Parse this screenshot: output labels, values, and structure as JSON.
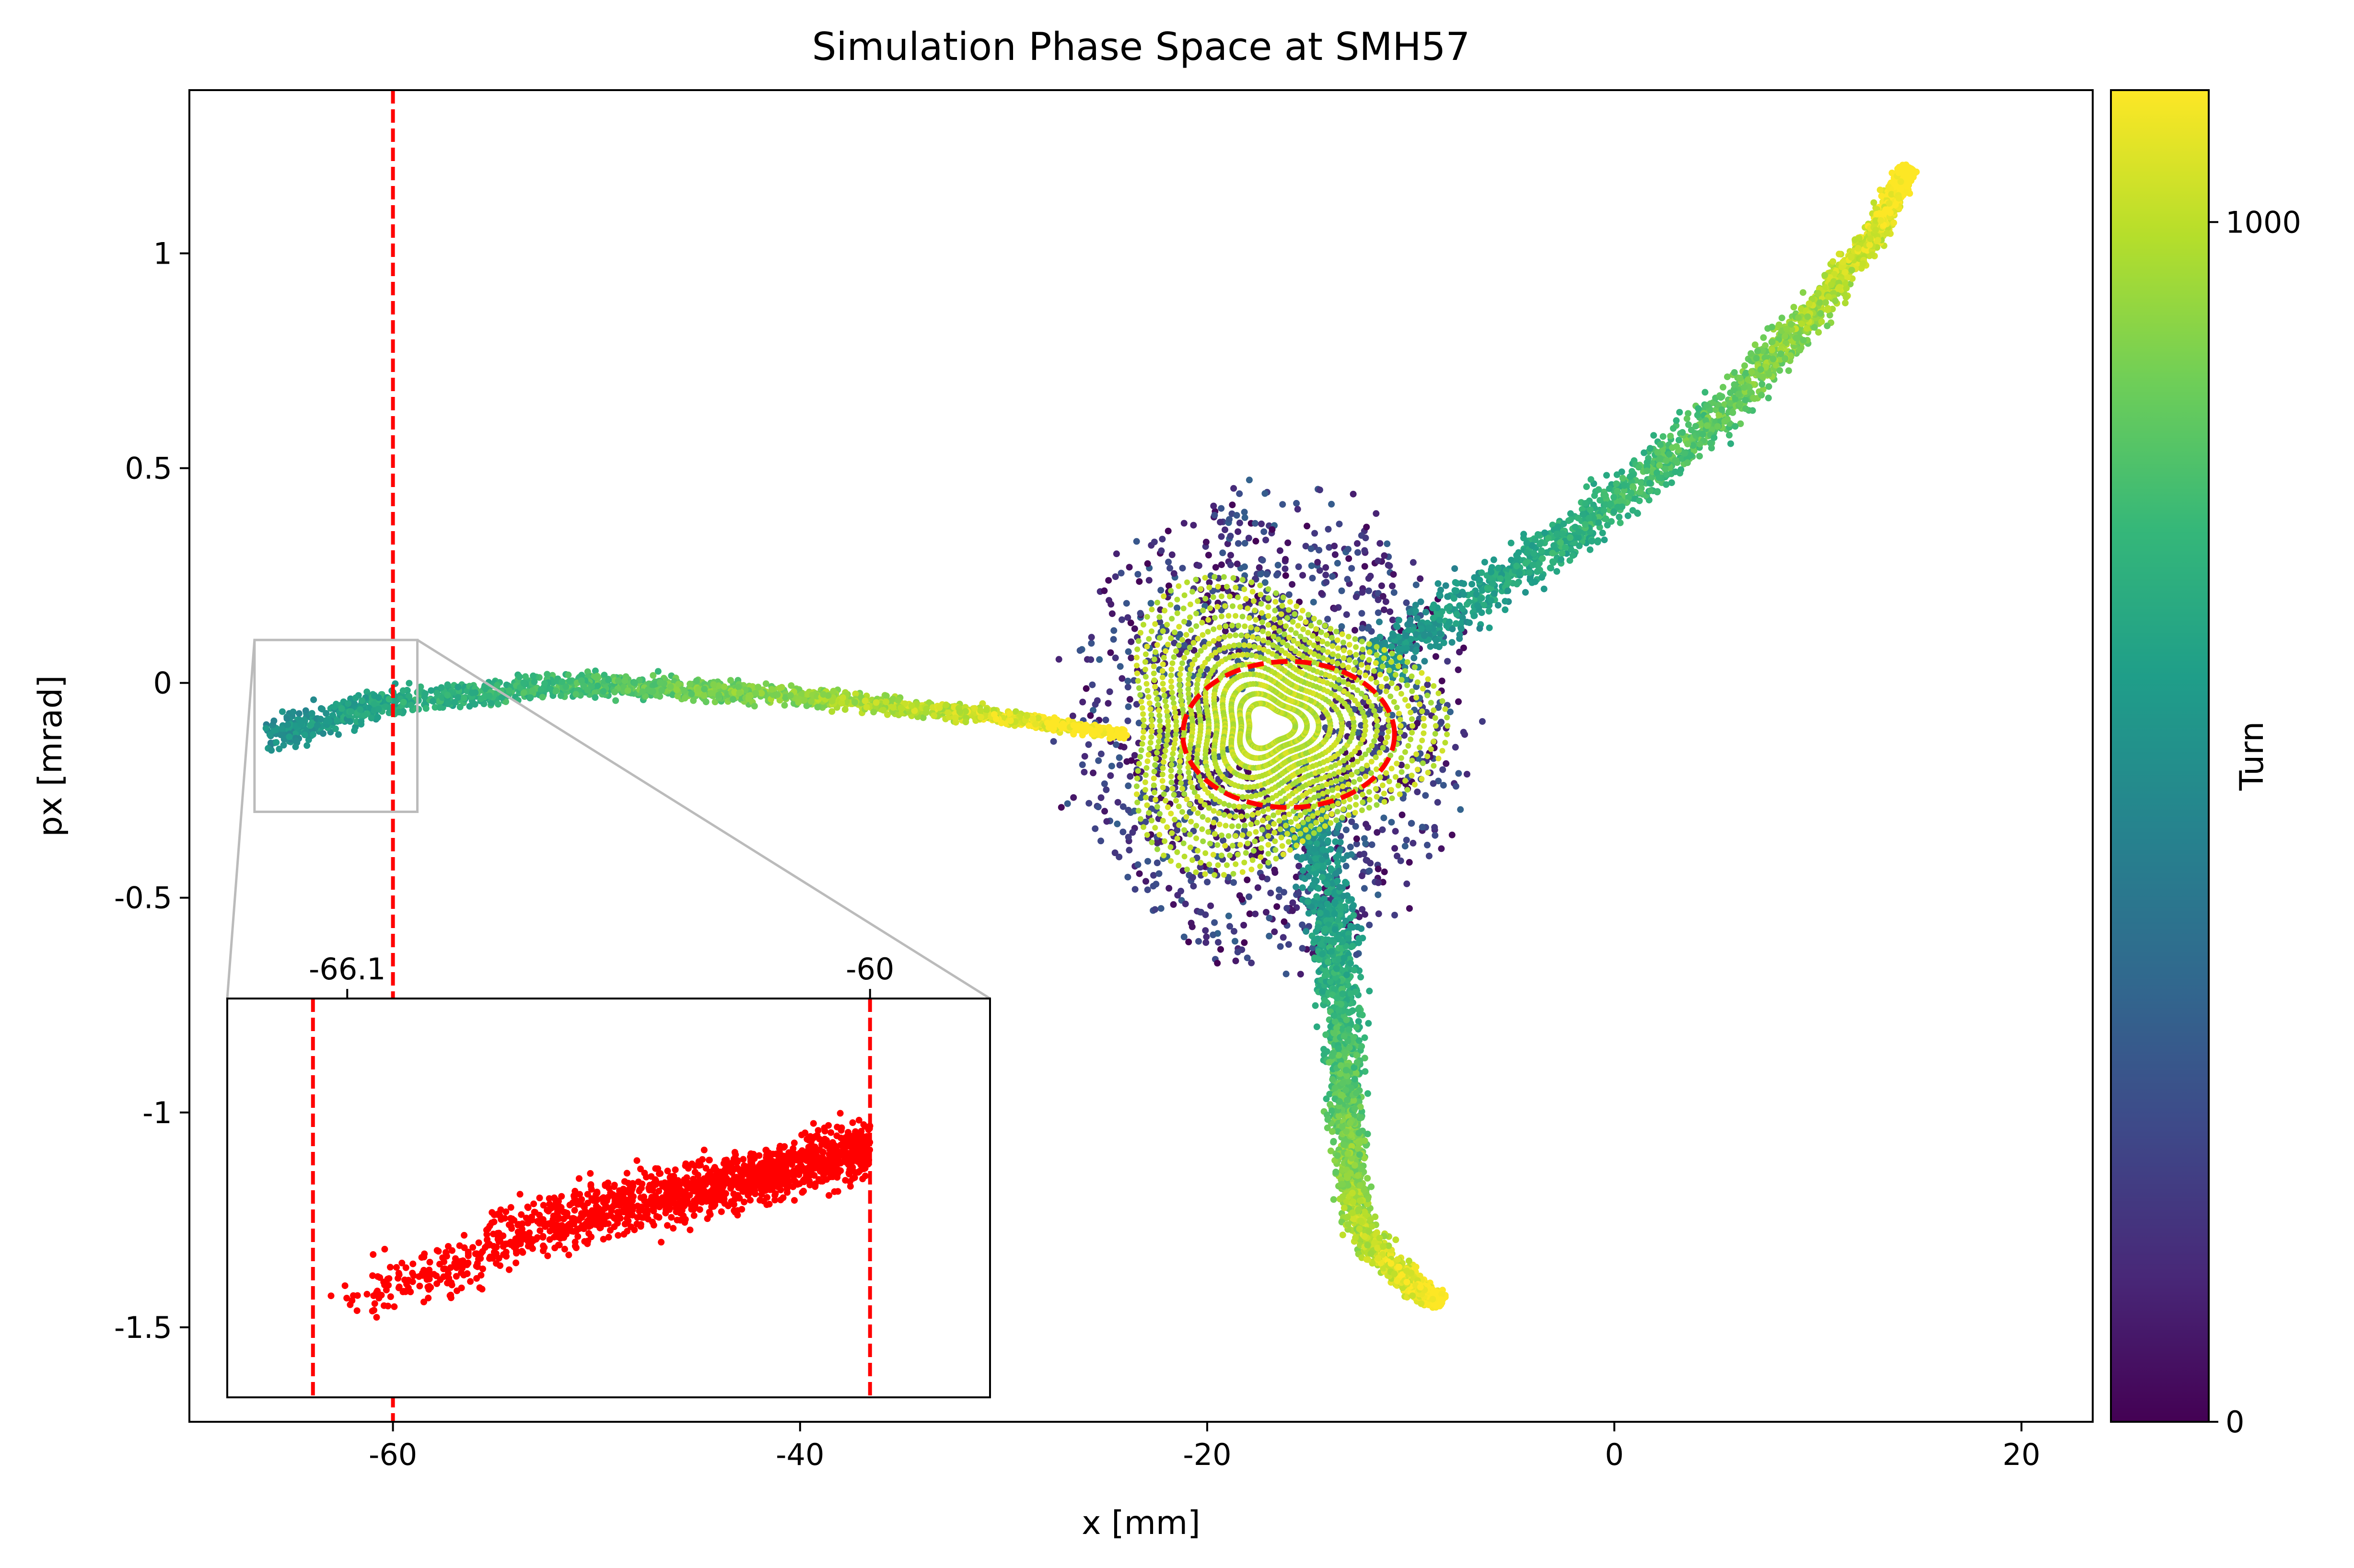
{
  "chart_data": {
    "type": "scatter",
    "title": "Simulation Phase Space at SMH57",
    "xlabel": "x [mm]",
    "ylabel": "px [mrad]",
    "xlim": [
      -70,
      23.5
    ],
    "ylim": [
      -1.72,
      1.38
    ],
    "xticks": [
      -60,
      -40,
      -20,
      0,
      20
    ],
    "yticks": [
      {
        "value": 1,
        "label": "1"
      },
      {
        "value": 0.5,
        "label": "0.5"
      },
      {
        "value": 0,
        "label": "0"
      },
      {
        "value": -0.5,
        "label": "-0.5"
      },
      {
        "value": -1,
        "label": "-1"
      },
      {
        "value": -1.5,
        "label": "-1.5"
      }
    ],
    "grid": false,
    "colormap": {
      "name": "viridis",
      "label": "Turn",
      "range": [
        0,
        1110
      ],
      "ticks": [
        0,
        1000
      ],
      "stops": [
        "#440154",
        "#482878",
        "#3e4989",
        "#31688e",
        "#26828e",
        "#1f9e89",
        "#35b779",
        "#6ece58",
        "#b5de2b",
        "#fde725"
      ]
    },
    "separatrix_arms": [
      {
        "name": "left",
        "center": [
          [
            -66.2,
            -0.13
          ],
          [
            -60,
            -0.04
          ],
          [
            -50,
            0.0
          ],
          [
            -40,
            -0.03
          ],
          [
            -30,
            -0.08
          ],
          [
            -24,
            -0.12
          ]
        ]
      },
      {
        "name": "upper-right",
        "center": [
          [
            -12,
            0.05
          ],
          [
            -6,
            0.22
          ],
          [
            0,
            0.42
          ],
          [
            6,
            0.66
          ],
          [
            10,
            0.88
          ],
          [
            13,
            1.06
          ],
          [
            14.5,
            1.2
          ]
        ]
      },
      {
        "name": "lower",
        "center": [
          [
            -15,
            -0.3
          ],
          [
            -14,
            -0.5
          ],
          [
            -13.5,
            -0.7
          ],
          [
            -13.2,
            -0.9
          ],
          [
            -13,
            -1.1
          ],
          [
            -12.5,
            -1.28
          ],
          [
            -10,
            -1.4
          ],
          [
            -8.5,
            -1.44
          ]
        ]
      }
    ],
    "stable_island": {
      "center": [
        -17,
        -0.1
      ],
      "turn_color": "#d3e21b"
    },
    "annotations": {
      "septum_line": {
        "x": -60,
        "color": "#ff0000",
        "style": "dashed"
      },
      "core_ellipse": {
        "center": [
          -16,
          -0.12
        ],
        "semi_axes": [
          5.2,
          0.17
        ],
        "color": "#ff0000",
        "style": "dashed"
      },
      "zoom_box": {
        "xlim": [
          -66.8,
          -58.8
        ],
        "ylim": [
          -0.3,
          0.1
        ],
        "color": "#bbbbbb"
      }
    },
    "inset": {
      "xlim": [
        -67.5,
        -58.6
      ],
      "ylim": [
        -0.21,
        -0.04
      ],
      "xticks": [
        {
          "value": -66.1,
          "label": "-66.1"
        },
        {
          "value": -60,
          "label": "-60"
        }
      ],
      "lines": [
        {
          "x": -66.5,
          "color": "#ff0000",
          "style": "dashed"
        },
        {
          "x": -60,
          "color": "#ff0000",
          "style": "dashed"
        }
      ],
      "points_color": "#ff0000"
    }
  }
}
